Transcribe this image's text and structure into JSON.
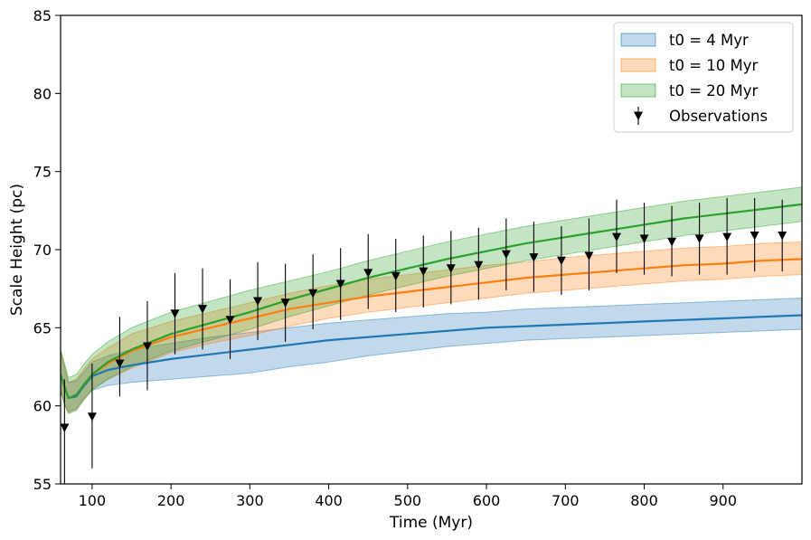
{
  "chart_data": {
    "type": "line",
    "title": "",
    "xlabel": "Time (Myr)",
    "ylabel": "Scale Height (pc)",
    "xlim": [
      60,
      1000
    ],
    "ylim": [
      55,
      85
    ],
    "xticks": [
      100,
      200,
      300,
      400,
      500,
      600,
      700,
      800,
      900
    ],
    "yticks": [
      55,
      60,
      65,
      70,
      75,
      80,
      85
    ],
    "grid": false,
    "legend_position": "top-right",
    "series": [
      {
        "name": "t0 = 4 Myr",
        "color": "#1f77b4",
        "x": [
          60,
          65,
          70,
          80,
          90,
          100,
          120,
          150,
          200,
          250,
          300,
          350,
          400,
          450,
          500,
          550,
          600,
          650,
          700,
          750,
          800,
          850,
          900,
          950,
          1000
        ],
        "y": [
          62.0,
          61.2,
          60.5,
          60.6,
          61.3,
          61.9,
          62.3,
          62.6,
          63.0,
          63.3,
          63.6,
          63.9,
          64.2,
          64.4,
          64.6,
          64.8,
          65.0,
          65.1,
          65.2,
          65.3,
          65.4,
          65.5,
          65.6,
          65.7,
          65.8
        ],
        "lower": [
          61.0,
          60.1,
          59.6,
          59.8,
          60.5,
          61.0,
          61.3,
          61.5,
          61.7,
          61.9,
          62.1,
          62.5,
          62.8,
          63.2,
          63.5,
          63.8,
          64.0,
          64.2,
          64.3,
          64.4,
          64.5,
          64.6,
          64.7,
          64.8,
          64.9
        ],
        "upper": [
          63.5,
          62.5,
          61.5,
          61.6,
          62.2,
          62.8,
          63.2,
          63.6,
          64.0,
          64.4,
          64.7,
          65.0,
          65.3,
          65.5,
          65.7,
          65.9,
          66.0,
          66.2,
          66.3,
          66.4,
          66.5,
          66.6,
          66.7,
          66.8,
          66.9
        ]
      },
      {
        "name": "t0 = 10 Myr",
        "color": "#ff7f0e",
        "x": [
          60,
          65,
          70,
          80,
          90,
          100,
          120,
          150,
          200,
          250,
          300,
          350,
          400,
          450,
          500,
          550,
          600,
          650,
          700,
          750,
          800,
          850,
          900,
          950,
          1000
        ],
        "y": [
          62.0,
          61.2,
          60.5,
          60.7,
          61.4,
          62.0,
          62.7,
          63.5,
          64.4,
          65.0,
          65.6,
          66.2,
          66.6,
          67.0,
          67.3,
          67.6,
          67.9,
          68.2,
          68.4,
          68.6,
          68.8,
          69.0,
          69.1,
          69.3,
          69.4
        ],
        "lower": [
          61.0,
          60.1,
          59.6,
          59.8,
          60.5,
          61.1,
          61.7,
          62.4,
          63.4,
          64.0,
          64.5,
          65.1,
          65.6,
          66.0,
          66.3,
          66.6,
          66.9,
          67.2,
          67.4,
          67.6,
          67.8,
          68.0,
          68.1,
          68.3,
          68.4
        ],
        "upper": [
          63.5,
          62.5,
          61.5,
          61.7,
          62.4,
          63.0,
          63.7,
          64.6,
          65.4,
          66.0,
          66.6,
          67.2,
          67.7,
          68.1,
          68.4,
          68.7,
          69.0,
          69.2,
          69.5,
          69.7,
          69.9,
          70.1,
          70.2,
          70.4,
          70.5
        ]
      },
      {
        "name": "t0 = 20 Myr",
        "color": "#2ca02c",
        "x": [
          60,
          65,
          70,
          80,
          90,
          100,
          120,
          150,
          200,
          250,
          300,
          350,
          400,
          450,
          500,
          550,
          600,
          650,
          700,
          750,
          800,
          850,
          900,
          950,
          1000
        ],
        "y": [
          62.0,
          61.2,
          60.5,
          60.7,
          61.4,
          62.0,
          62.8,
          63.6,
          64.6,
          65.3,
          66.0,
          66.8,
          67.5,
          68.2,
          68.8,
          69.4,
          69.9,
          70.4,
          70.8,
          71.2,
          71.6,
          72.0,
          72.3,
          72.6,
          72.9
        ],
        "lower": [
          61.0,
          60.1,
          59.5,
          59.7,
          60.4,
          61.0,
          61.7,
          62.5,
          63.5,
          64.2,
          64.9,
          65.7,
          66.4,
          67.1,
          67.7,
          68.3,
          68.8,
          69.3,
          69.7,
          70.1,
          70.5,
          70.9,
          71.2,
          71.5,
          71.8
        ],
        "upper": [
          63.6,
          62.7,
          61.8,
          62.0,
          62.7,
          63.3,
          64.1,
          65.0,
          66.0,
          66.7,
          67.4,
          68.0,
          68.6,
          69.3,
          69.9,
          70.5,
          71.0,
          71.5,
          71.9,
          72.3,
          72.7,
          73.1,
          73.4,
          73.7,
          74.0
        ]
      },
      {
        "name": "Observations",
        "color": "#000000",
        "marker": "downward-triangle",
        "x": [
          65,
          100,
          135,
          170,
          205,
          240,
          275,
          310,
          345,
          380,
          415,
          450,
          485,
          520,
          555,
          590,
          625,
          660,
          695,
          730,
          765,
          800,
          835,
          870,
          905,
          940,
          975
        ],
        "y": [
          58.6,
          59.3,
          62.7,
          63.8,
          65.9,
          66.2,
          65.5,
          66.7,
          66.6,
          67.2,
          67.8,
          68.5,
          68.3,
          68.6,
          68.8,
          69.0,
          69.7,
          69.5,
          69.3,
          69.6,
          70.8,
          70.7,
          70.5,
          70.7,
          70.8,
          70.9,
          70.9
        ],
        "lower": [
          55.0,
          56.0,
          60.6,
          61.0,
          63.3,
          63.6,
          63.0,
          64.2,
          64.1,
          64.9,
          65.5,
          66.2,
          66.0,
          66.3,
          66.5,
          66.8,
          67.4,
          67.3,
          67.1,
          67.4,
          68.5,
          68.4,
          68.3,
          68.4,
          68.4,
          68.6,
          68.6
        ],
        "upper": [
          61.7,
          62.7,
          65.7,
          66.7,
          68.5,
          68.8,
          68.1,
          69.2,
          69.1,
          69.7,
          70.1,
          71.0,
          70.7,
          70.9,
          71.2,
          71.4,
          72.0,
          71.8,
          71.5,
          72.0,
          73.2,
          73.0,
          72.8,
          73.0,
          73.3,
          73.3,
          73.2
        ]
      }
    ]
  }
}
